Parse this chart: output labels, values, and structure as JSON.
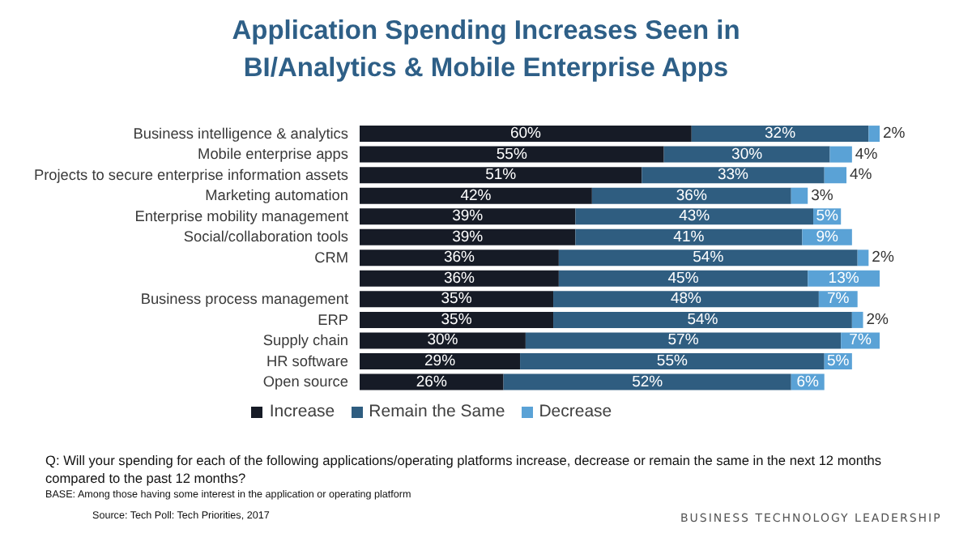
{
  "chart_data": {
    "type": "bar",
    "orientation": "horizontal",
    "stacked": true,
    "title": "Application Spending Increases Seen in BI/Analytics & Mobile Enterprise Apps",
    "categories": [
      "Business intelligence & analytics",
      "Mobile enterprise apps",
      "Projects to secure enterprise information assets",
      "Marketing automation",
      "Enterprise mobility management",
      "Social/collaboration tools",
      "CRM",
      null,
      "Business process management",
      "ERP",
      "Supply chain",
      "HR software",
      "Open source"
    ],
    "series": [
      {
        "name": "Increase",
        "color": "#161b26",
        "values": [
          60,
          55,
          51,
          42,
          39,
          39,
          36,
          36,
          35,
          35,
          30,
          29,
          26
        ],
        "value_labels": [
          "60%",
          "55%",
          "51%",
          "42%",
          "39%",
          "39%",
          "36%",
          "36%",
          "35%",
          "35%",
          "30%",
          "29%",
          "26%"
        ]
      },
      {
        "name": "Remain the Same",
        "color": "#2f5d80",
        "values": [
          32,
          30,
          33,
          36,
          43,
          41,
          54,
          45,
          48,
          54,
          57,
          55,
          52
        ],
        "value_labels": [
          "32%",
          "30%",
          "33%",
          "36%",
          "43%",
          "41%",
          "54%",
          "45%",
          "48%",
          "54%",
          "57%",
          "55%",
          "52%"
        ]
      },
      {
        "name": "Decrease",
        "color": "#5aa2d6",
        "values": [
          2,
          4,
          4,
          3,
          5,
          9,
          2,
          13,
          7,
          2,
          7,
          5,
          6
        ],
        "value_labels": [
          "2%",
          "4%",
          "4%",
          "3%",
          "5%",
          "9%",
          "2%",
          "13%",
          "7%",
          "2%",
          "7%",
          "5%",
          "6%"
        ]
      }
    ],
    "legend": "bottom",
    "grid": false,
    "annotations": [
      "Q: Will your spending for each of the following applications/operating platforms increase, decrease or remain the same in the next 12 months compared to the past 12 months?",
      "BASE: Among those having some interest in the application or operating platform",
      "Source: Tech Poll: Tech Priorities, 2017",
      "BUSINESS TECHNOLOGY LEADERSHIP"
    ]
  }
}
